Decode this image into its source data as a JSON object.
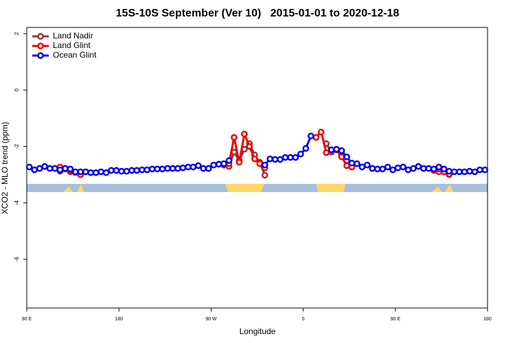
{
  "chart_data": {
    "type": "line",
    "title": "15S-10S September (Ver 10)   2015-01-01 to 2020-12-18",
    "x_label": "Longitude",
    "y_label": "XCO2 - MLO trend (ppm)",
    "x": [
      92.5,
      97.5,
      102.5,
      107.5,
      112.5,
      117.5,
      122.5,
      127.5,
      132.5,
      137.5,
      142.5,
      147.5,
      152.5,
      157.5,
      162.5,
      167.5,
      172.5,
      177.5,
      182.5,
      187.5,
      192.5,
      197.5,
      202.5,
      207.5,
      212.5,
      217.5,
      222.5,
      227.5,
      232.5,
      237.5,
      242.5,
      247.5,
      252.5,
      257.5,
      262.5,
      267.5,
      272.5,
      277.5,
      282.5,
      287.5,
      292.5,
      297.5,
      302.5,
      307.5,
      312.5,
      317.5,
      322.5,
      327.5,
      332.5,
      337.5,
      342.5,
      347.5,
      352.5,
      357.5,
      362.5,
      367.5,
      372.5,
      377.5,
      382.5,
      387.5,
      392.5,
      397.5,
      402.5,
      407.5,
      412.5,
      417.5,
      422.5,
      427.5,
      432.5,
      437.5,
      442.5,
      447.5,
      452.5,
      457.5,
      462.5,
      467.5,
      472.5,
      477.5,
      482.5,
      487.5,
      492.5,
      497.5,
      502.5,
      507.5,
      512.5,
      517.5,
      522.5,
      527.5,
      532.5,
      537.5
    ],
    "series": [
      {
        "name": "Land Nadir",
        "color": "#993333",
        "values": [
          null,
          null,
          null,
          null,
          null,
          null,
          -2.88,
          -2.78,
          -2.9,
          null,
          null,
          null,
          null,
          null,
          null,
          null,
          null,
          null,
          null,
          null,
          null,
          null,
          null,
          null,
          null,
          null,
          null,
          null,
          null,
          null,
          null,
          null,
          null,
          null,
          null,
          null,
          null,
          null,
          -2.66,
          -2.71,
          -2.2,
          -2.5,
          -2.1,
          -1.9,
          -2.3,
          -2.56,
          -3.02,
          null,
          null,
          null,
          null,
          null,
          null,
          null,
          null,
          null,
          null,
          null,
          -1.9,
          -2.2,
          -2.1,
          -2.3,
          -2.5,
          -2.73,
          null,
          null,
          null,
          null,
          null,
          null,
          null,
          null,
          null,
          null,
          null,
          null,
          null,
          null,
          null,
          null,
          -2.9,
          -2.85,
          -3.0,
          null,
          null,
          null,
          null,
          null,
          null,
          null
        ]
      },
      {
        "name": "Land Glint",
        "color": "#ee0000",
        "values": [
          null,
          null,
          null,
          null,
          null,
          null,
          -2.73,
          -2.8,
          -2.85,
          -2.93,
          -3.0,
          null,
          null,
          null,
          null,
          null,
          null,
          null,
          null,
          null,
          null,
          null,
          null,
          null,
          null,
          null,
          null,
          null,
          null,
          null,
          null,
          null,
          null,
          null,
          null,
          null,
          null,
          null,
          -2.66,
          -2.61,
          -1.68,
          -2.56,
          -1.56,
          -2.0,
          -2.44,
          -2.61,
          -2.76,
          null,
          null,
          null,
          null,
          null,
          null,
          null,
          null,
          null,
          -1.68,
          -1.49,
          -2.22,
          -2.15,
          -2.12,
          -2.37,
          -2.68,
          -2.73,
          null,
          null,
          null,
          null,
          null,
          null,
          null,
          null,
          null,
          null,
          null,
          null,
          null,
          null,
          null,
          -2.85,
          -2.8,
          -2.9,
          -2.98,
          null,
          null,
          null,
          null,
          null,
          null,
          null
        ]
      },
      {
        "name": "Ocean Glint",
        "color": "#0000ee",
        "values": [
          -2.73,
          -2.83,
          -2.78,
          -2.71,
          -2.78,
          -2.78,
          -2.83,
          -2.78,
          -2.8,
          -2.9,
          -2.9,
          -2.9,
          -2.93,
          -2.93,
          -2.9,
          -2.93,
          -2.85,
          -2.85,
          -2.88,
          -2.88,
          -2.85,
          -2.85,
          -2.83,
          -2.83,
          -2.8,
          -2.8,
          -2.8,
          -2.78,
          -2.78,
          -2.78,
          -2.76,
          -2.73,
          -2.73,
          -2.68,
          -2.78,
          -2.78,
          -2.66,
          -2.63,
          -2.61,
          -2.5,
          null,
          null,
          null,
          null,
          null,
          null,
          -2.66,
          -2.44,
          -2.46,
          -2.46,
          -2.39,
          -2.39,
          -2.39,
          -2.27,
          -2.07,
          -1.63,
          null,
          null,
          null,
          -2.12,
          -2.1,
          -2.15,
          -2.37,
          -2.59,
          -2.61,
          -2.73,
          -2.66,
          -2.78,
          -2.8,
          -2.8,
          -2.73,
          -2.83,
          -2.76,
          -2.73,
          -2.83,
          -2.78,
          -2.71,
          -2.78,
          -2.78,
          -2.8,
          -2.73,
          -2.8,
          -2.88,
          -2.9,
          -2.9,
          -2.9,
          -2.88,
          -2.9,
          -2.83,
          -2.83
        ]
      }
    ],
    "xlim": [
      90,
      540
    ],
    "xticks": [
      {
        "value": 90,
        "label": "90 E"
      },
      180,
      {
        "value": 270,
        "label": "90 W"
      },
      {
        "value": 360,
        "label": "0"
      },
      {
        "value": 450,
        "label": "90 E"
      },
      180.0001
    ],
    "ylim": [
      -7.73,
      2.22
    ],
    "yticks": [
      2,
      0,
      -2,
      -4,
      -6
    ],
    "legend": "top-left"
  }
}
